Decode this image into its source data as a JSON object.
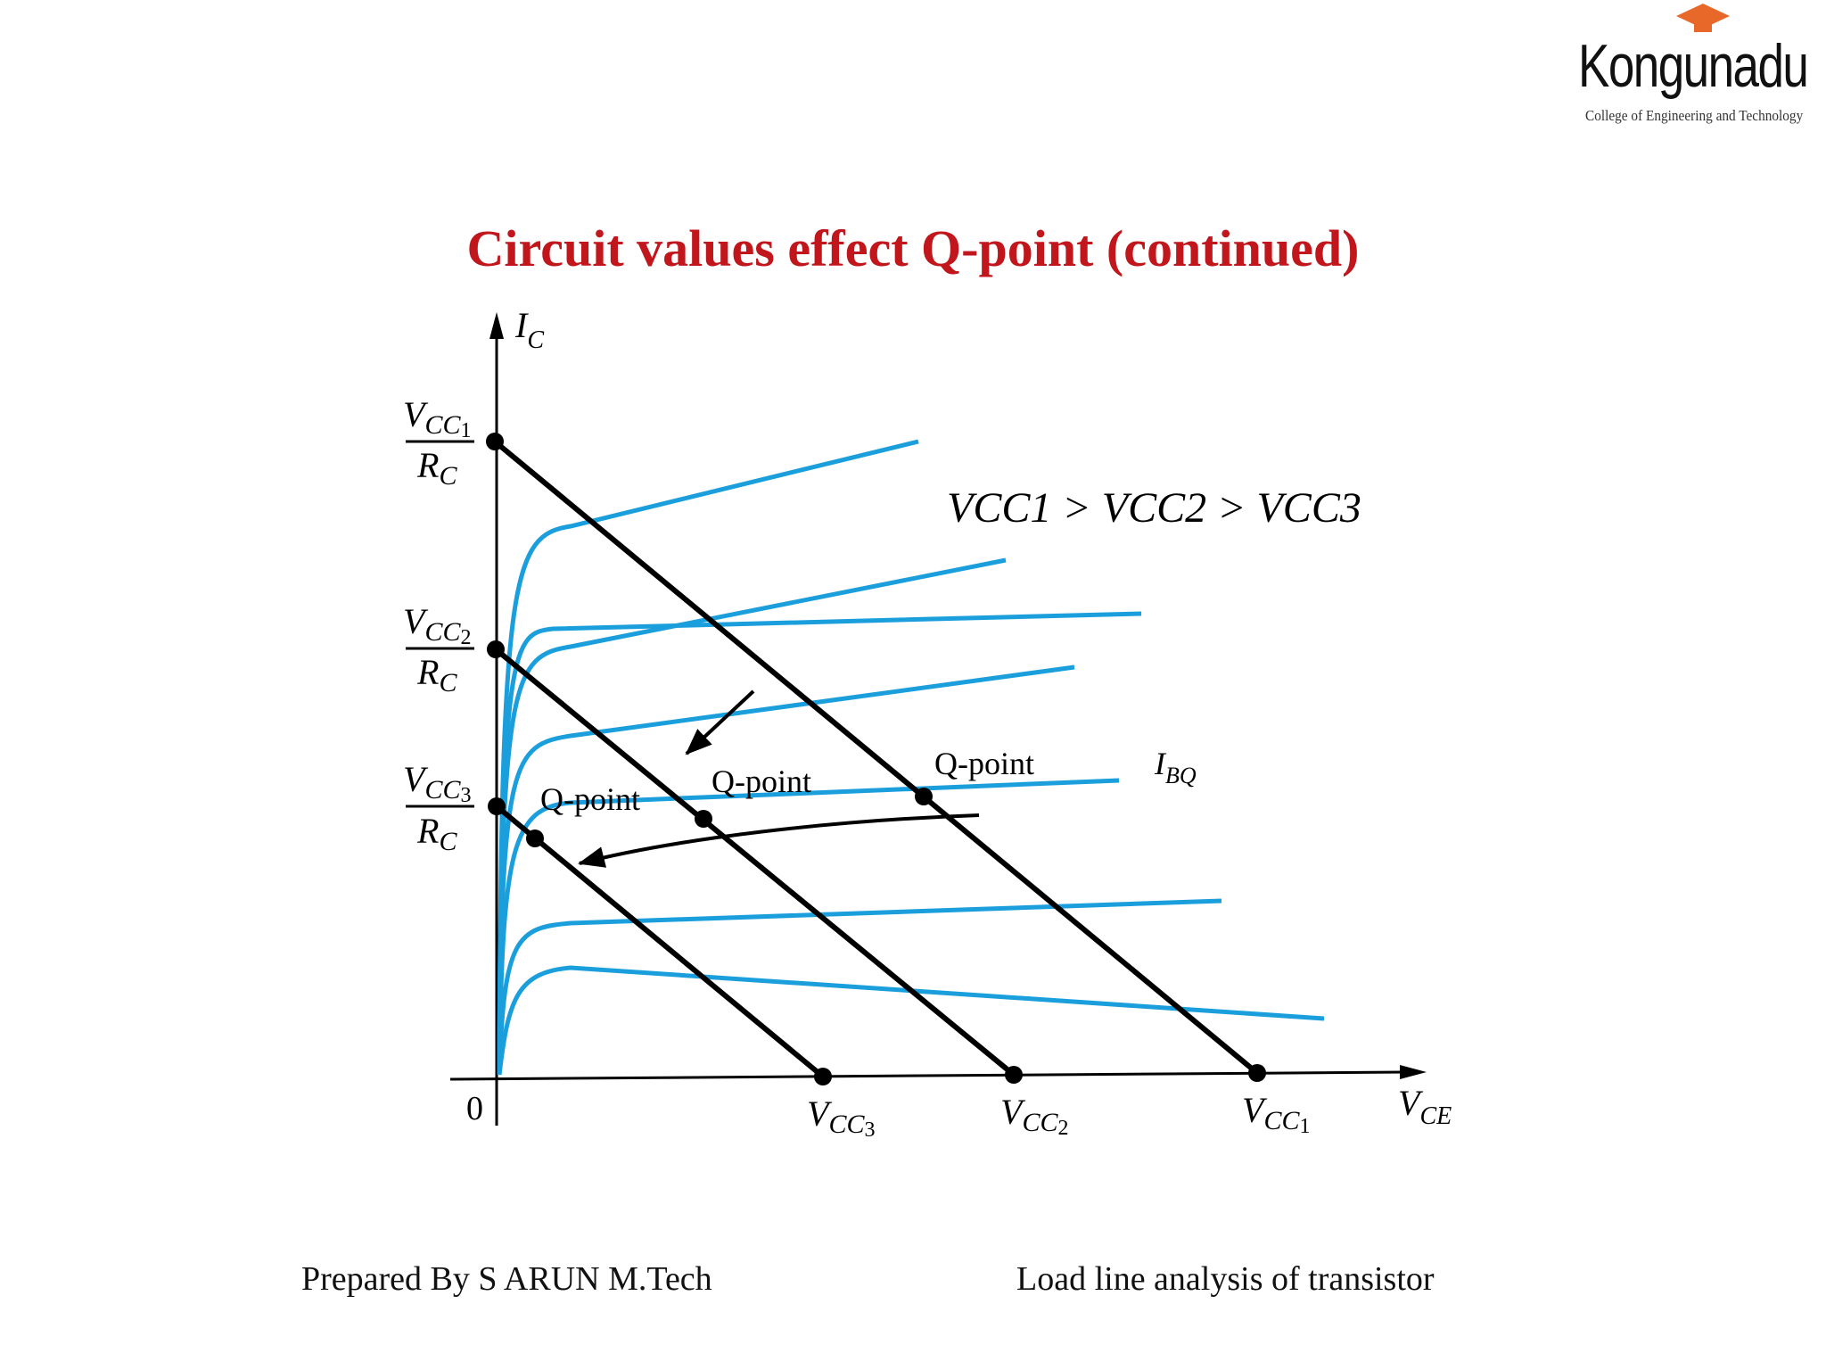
{
  "logo": {
    "name": "Kongunadu",
    "subtitle": "College of Engineering and Technology"
  },
  "slide": {
    "title": "Circuit values effect Q-point (continued)"
  },
  "diagram": {
    "y_axis_label": "I",
    "y_axis_sub": "C",
    "x_axis_label": "V",
    "x_axis_sub": "CE",
    "origin_label": "0",
    "relation_label": "VCC1 > VCC2 > VCC3",
    "ibq_label": "I",
    "ibq_sub": "BQ",
    "qpoint_label": "Q-point",
    "intercepts_y": [
      {
        "num": "V",
        "num_sub": "CC",
        "num_index": "1",
        "den": "R",
        "den_sub": "C"
      },
      {
        "num": "V",
        "num_sub": "CC",
        "num_index": "2",
        "den": "R",
        "den_sub": "C"
      },
      {
        "num": "V",
        "num_sub": "CC",
        "num_index": "3",
        "den": "R",
        "den_sub": "C"
      }
    ],
    "intercepts_x": [
      {
        "main": "V",
        "sub": "CC",
        "index": "3"
      },
      {
        "main": "V",
        "sub": "CC",
        "index": "2"
      },
      {
        "main": "V",
        "sub": "CC",
        "index": "1"
      }
    ],
    "colors": {
      "curve": "#1a9fdc",
      "load_line": "#000000"
    }
  },
  "footer": {
    "left": "Prepared By S ARUN M.Tech",
    "right": "Load line analysis of transistor"
  }
}
